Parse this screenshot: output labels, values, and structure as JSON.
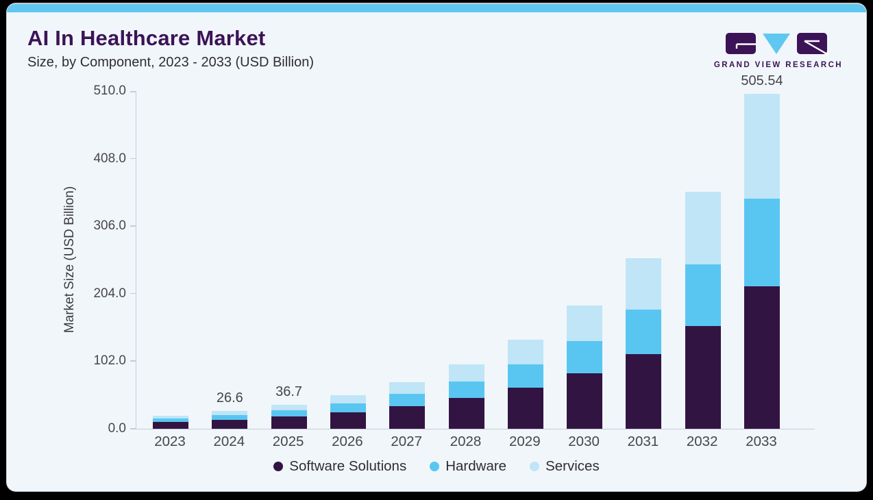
{
  "header": {
    "title": "AI In Healthcare Market",
    "subtitle": "Size, by Component, 2023 - 2033 (USD Billion)"
  },
  "logo": {
    "text": "GRAND VIEW RESEARCH"
  },
  "theme": {
    "accent_bar": "#60c8f0",
    "card_background": "#f1f6fa",
    "brand_purple": "#3b1356",
    "axis_line": "#c6ccd3",
    "software_color": "#321443",
    "hardware_color": "#59c6f1",
    "services_color": "#bfe5f7",
    "tick_text": "#47474d",
    "text_dark": "#2e2e34"
  },
  "chart_data": {
    "type": "bar",
    "variant": "stacked",
    "title": "AI In Healthcare Market",
    "subtitle": "Size, by Component, 2023 - 2033 (USD Billion)",
    "xlabel": "",
    "ylabel": "Market Size (USD Billion)",
    "categories": [
      "2023",
      "2024",
      "2025",
      "2026",
      "2027",
      "2028",
      "2029",
      "2030",
      "2031",
      "2032",
      "2033"
    ],
    "series": [
      {
        "name": "Software Solutions",
        "color": "#321443",
        "values": [
          10.0,
          13.6,
          18.4,
          25.0,
          34.0,
          46.3,
          62.5,
          84.0,
          113.0,
          155.0,
          215.5
        ]
      },
      {
        "name": "Hardware",
        "color": "#59c6f1",
        "values": [
          5.1,
          7.0,
          9.7,
          13.4,
          18.5,
          25.3,
          35.1,
          48.6,
          67.3,
          93.5,
          132.0
        ]
      },
      {
        "name": "Services",
        "color": "#bfe5f7",
        "values": [
          4.1,
          6.0,
          8.6,
          12.4,
          17.8,
          25.8,
          37.3,
          53.4,
          77.0,
          109.0,
          158.04
        ]
      }
    ],
    "bar_total_labels": [
      "",
      "26.6",
      "36.7",
      "",
      "",
      "",
      "",
      "",
      "",
      "",
      "505.54"
    ],
    "ylim": [
      0,
      510
    ],
    "yticks": [
      0,
      102,
      204,
      306,
      408,
      510
    ],
    "ytick_labels": [
      "0.0",
      "102.0",
      "204.0",
      "306.0",
      "408.0",
      "510.0"
    ],
    "grid": false,
    "legend_position": "bottom"
  }
}
